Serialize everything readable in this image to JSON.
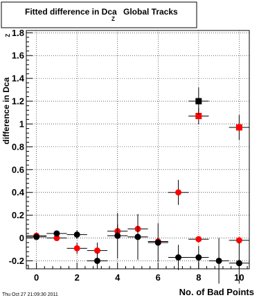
{
  "chart_data": {
    "type": "scatter",
    "title": "Fitted difference in Dca",
    "title_subscript": "Z",
    "title_suffix": "Global Tracks",
    "xlabel": "No. of Bad Points",
    "ylabel": "difference in Dca",
    "ylabel_subscript": "Z",
    "xlim": [
      -0.5,
      10.5
    ],
    "ylim": [
      -0.27,
      1.82
    ],
    "x_ticks": [
      0,
      2,
      4,
      6,
      8,
      10
    ],
    "y_ticks": [
      -0.2,
      0,
      0.2,
      0.4,
      0.6,
      0.8,
      1,
      1.2,
      1.4,
      1.6,
      1.8
    ],
    "grid": true,
    "series": [
      {
        "color": "#ff0000",
        "points": [
          {
            "x": 0,
            "y": 0.02,
            "xerr": 0.5,
            "yerr": 0.02,
            "marker": "circle"
          },
          {
            "x": 1,
            "y": 0.0,
            "xerr": 0.5,
            "yerr": 0.02,
            "marker": "circle"
          },
          {
            "x": 2,
            "y": -0.09,
            "xerr": 0.5,
            "yerr": 0.05,
            "marker": "circle"
          },
          {
            "x": 3,
            "y": -0.11,
            "xerr": 0.5,
            "yerr": 0.07,
            "marker": "circle"
          },
          {
            "x": 4,
            "y": 0.06,
            "xerr": 0.5,
            "yerr": 0.06,
            "marker": "circle"
          },
          {
            "x": 5,
            "y": 0.08,
            "xerr": 0.5,
            "yerr": 0.07,
            "marker": "circle"
          },
          {
            "x": 6,
            "y": -0.03,
            "xerr": 0.5,
            "yerr": 0.03,
            "marker": "circle"
          },
          {
            "x": 7,
            "y": 0.4,
            "xerr": 0.5,
            "yerr": 0.11,
            "marker": "circle"
          },
          {
            "x": 8,
            "y": -0.01,
            "xerr": 0.5,
            "yerr": 0.02,
            "marker": "circle"
          },
          {
            "x": 8,
            "y": 1.07,
            "xerr": 0.5,
            "yerr": 0.07,
            "marker": "square"
          },
          {
            "x": 10,
            "y": -0.02,
            "xerr": 0.5,
            "yerr": 0.02,
            "marker": "circle"
          },
          {
            "x": 10,
            "y": 0.97,
            "xerr": 0.5,
            "yerr": 0.11,
            "marker": "square"
          }
        ]
      },
      {
        "color": "#000000",
        "points": [
          {
            "x": 0,
            "y": 0.01,
            "xerr": 0.5,
            "yerr": 0.02,
            "marker": "circle"
          },
          {
            "x": 1,
            "y": 0.04,
            "xerr": 0.5,
            "yerr": 0.02,
            "marker": "circle"
          },
          {
            "x": 2,
            "y": 0.03,
            "xerr": 0.5,
            "yerr": 0.04,
            "marker": "circle"
          },
          {
            "x": 3,
            "y": -0.2,
            "xerr": 0.5,
            "yerr": 0.07,
            "marker": "circle"
          },
          {
            "x": 4,
            "y": 0.02,
            "xerr": 0.5,
            "yerr": 0.2,
            "marker": "circle"
          },
          {
            "x": 5,
            "y": 0.01,
            "xerr": 0.5,
            "yerr": 0.2,
            "marker": "circle"
          },
          {
            "x": 6,
            "y": -0.04,
            "xerr": 0.5,
            "yerr": 0.17,
            "marker": "circle"
          },
          {
            "x": 7,
            "y": -0.17,
            "xerr": 0.5,
            "yerr": 0.11,
            "marker": "circle"
          },
          {
            "x": 8,
            "y": -0.17,
            "xerr": 0.5,
            "yerr": 0.1,
            "marker": "circle"
          },
          {
            "x": 8,
            "y": 1.2,
            "xerr": 0.5,
            "yerr": 0.12,
            "marker": "square"
          },
          {
            "x": 9,
            "y": -0.2,
            "xerr": 0.5,
            "yerr": 0.2,
            "marker": "circle"
          },
          {
            "x": 10,
            "y": -0.22,
            "xerr": 0.5,
            "yerr": 0.18,
            "marker": "circle"
          }
        ]
      }
    ]
  },
  "timestamp": "Thu Oct 27 21:09:30 2011"
}
